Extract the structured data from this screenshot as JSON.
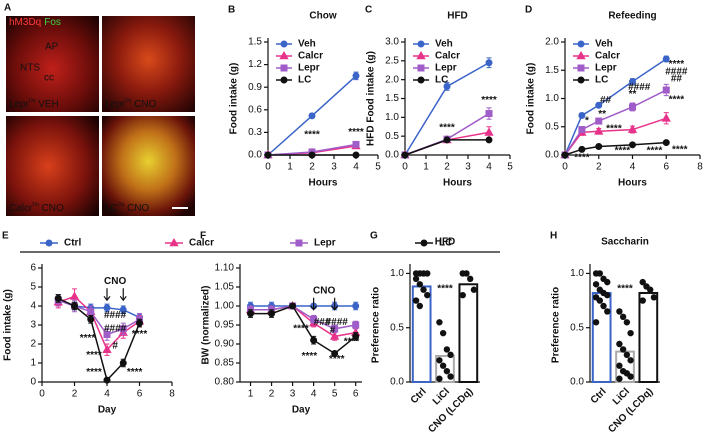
{
  "micrographs": {
    "panel": "A",
    "stain_labels": [
      {
        "text": "hM3Dq",
        "color": "#ff3b3b"
      },
      {
        "text": "Fos",
        "color": "#3fd43f"
      }
    ],
    "regions": [
      "AP",
      "NTS",
      "cc"
    ],
    "captions": [
      {
        "base": "Lepr",
        "sup": "Dq",
        "tail": " VEH"
      },
      {
        "base": "Lepr",
        "sup": "Dq",
        "tail": " CNO"
      },
      {
        "base": "Calcr",
        "sup": "Dq",
        "tail": " CNO"
      },
      {
        "base": "LC",
        "sup": "Dq",
        "tail": " CNO"
      }
    ]
  },
  "chart_data": [
    {
      "panel": "B",
      "type": "line",
      "title": "Chow",
      "ylabel": "Food intake (g)",
      "xlabel": "Hours",
      "legend": "upper left",
      "x": [
        0,
        2,
        4
      ],
      "xlim": [
        0,
        5
      ],
      "xticks": [
        0,
        1,
        2,
        3,
        4,
        5
      ],
      "ylim": [
        0,
        1.5
      ],
      "yticks": [
        {
          "value": 0,
          "label": "0.0"
        },
        0.3,
        0.6,
        0.9,
        1.2,
        1.5
      ],
      "series": [
        {
          "name": "Veh",
          "color": "#3a64c8",
          "marker": "circle",
          "values": [
            0,
            0.52,
            1.05
          ],
          "errors": [
            0,
            0.03,
            0.05
          ]
        },
        {
          "name": "Calcr",
          "color": "#e8338a",
          "marker": "triangle",
          "values": [
            0,
            0.03,
            0.12
          ],
          "errors": [
            0,
            0.01,
            0.02
          ]
        },
        {
          "name": "Lepr",
          "color": "#a05cc8",
          "marker": "square",
          "values": [
            0,
            0.04,
            0.14
          ],
          "errors": [
            0,
            0.01,
            0.02
          ]
        },
        {
          "name": "LC",
          "color": "#111111",
          "marker": "circle",
          "values": [
            0,
            0,
            0
          ],
          "errors": [
            0,
            0,
            0
          ]
        }
      ],
      "annotations": [
        {
          "text": "****",
          "x": 2,
          "y": 0.27
        },
        {
          "text": "****",
          "x": 4,
          "y": 0.3
        }
      ]
    },
    {
      "panel": "C",
      "type": "line",
      "title": "HFD",
      "ylabel": "HFD Food intake (g)",
      "xlabel": "Hours",
      "legend": "upper left",
      "x": [
        0,
        2,
        4
      ],
      "xlim": [
        0,
        5
      ],
      "xticks": [
        0,
        1,
        2,
        3,
        4,
        5
      ],
      "ylim": [
        0,
        3
      ],
      "yticks": [
        {
          "value": 0,
          "label": "0.0"
        },
        0.5,
        {
          "value": 1,
          "label": "1.0"
        },
        1.5,
        {
          "value": 2,
          "label": "2.0"
        },
        2.5,
        {
          "value": 3,
          "label": "3.0"
        }
      ],
      "series": [
        {
          "name": "Veh",
          "color": "#3a64c8",
          "marker": "circle",
          "values": [
            0,
            1.82,
            2.45
          ],
          "errors": [
            0,
            0.1,
            0.13
          ]
        },
        {
          "name": "Calcr",
          "color": "#e8338a",
          "marker": "triangle",
          "values": [
            0,
            0.4,
            0.6
          ],
          "errors": [
            0,
            0.05,
            0.15
          ]
        },
        {
          "name": "Lepr",
          "color": "#a05cc8",
          "marker": "square",
          "values": [
            0,
            0.42,
            1.1
          ],
          "errors": [
            0,
            0.05,
            0.15
          ]
        },
        {
          "name": "LC",
          "color": "#111111",
          "marker": "circle",
          "values": [
            0,
            0.4,
            0.4
          ],
          "errors": [
            0,
            0.03,
            0.03
          ]
        }
      ],
      "annotations": [
        {
          "text": "****",
          "x": 2,
          "y": 0.72
        },
        {
          "text": "****",
          "x": 4,
          "y": 1.45
        }
      ]
    },
    {
      "panel": "D",
      "type": "line",
      "title": "Refeeding",
      "ylabel": "Food intake (g)",
      "xlabel": "Hours",
      "legend": "upper left",
      "x": [
        0,
        1,
        2,
        4,
        6
      ],
      "xlim": [
        0,
        8
      ],
      "xticks": [
        0,
        2,
        4,
        6,
        8
      ],
      "ylim": [
        0,
        2
      ],
      "yticks": [
        {
          "value": 0,
          "label": "0.0"
        },
        0.5,
        {
          "value": 1,
          "label": "1.0"
        },
        1.5,
        {
          "value": 2,
          "label": "2.0"
        }
      ],
      "series": [
        {
          "name": "Veh",
          "color": "#3a64c8",
          "marker": "circle",
          "values": [
            0,
            0.7,
            0.88,
            1.3,
            1.7
          ],
          "errors": [
            0,
            0.04,
            0.04,
            0.05,
            0.05
          ]
        },
        {
          "name": "Calcr",
          "color": "#e8338a",
          "marker": "triangle",
          "values": [
            0,
            0.4,
            0.42,
            0.45,
            0.65
          ],
          "errors": [
            0,
            0.05,
            0.05,
            0.06,
            0.1
          ]
        },
        {
          "name": "Lepr",
          "color": "#a05cc8",
          "marker": "square",
          "values": [
            0,
            0.45,
            0.6,
            0.85,
            1.15
          ],
          "errors": [
            0,
            0.05,
            0.05,
            0.07,
            0.1
          ]
        },
        {
          "name": "LC",
          "color": "#111111",
          "marker": "circle",
          "values": [
            0,
            0.1,
            0.15,
            0.18,
            0.22
          ],
          "errors": [
            0,
            0.02,
            0.02,
            0.02,
            0.02
          ]
        }
      ],
      "annotations": [
        {
          "text": "****",
          "x": 6.6,
          "y": 1.6
        },
        {
          "text": "####",
          "x": 6.6,
          "y": 1.47
        },
        {
          "text": "##",
          "x": 6.6,
          "y": 1.35
        },
        {
          "text": "****",
          "x": 6.6,
          "y": 0.98
        },
        {
          "text": "**",
          "x": 4,
          "y": 1.07
        },
        {
          "text": "####",
          "x": 4.4,
          "y": 1.2
        },
        {
          "text": "##",
          "x": 2.4,
          "y": 0.97
        },
        {
          "text": "*",
          "x": 1.3,
          "y": 0.6
        },
        {
          "text": "**",
          "x": 2.2,
          "y": 0.72
        },
        {
          "text": "****",
          "x": 2.9,
          "y": 0.46
        },
        {
          "text": "****",
          "x": 3.4,
          "y": 0.07
        },
        {
          "text": "****",
          "x": 5.3,
          "y": 0.07
        },
        {
          "text": "****",
          "x": 6.8,
          "y": 0.09
        },
        {
          "text": "****",
          "x": 1,
          "y": -0.05
        }
      ]
    },
    {
      "panel": "E",
      "type": "line",
      "ylabel": "Food intake (g)",
      "xlabel": "Day",
      "legend": "top",
      "x": [
        1,
        2,
        3,
        4,
        5,
        6
      ],
      "xlim": [
        0,
        8
      ],
      "xticks": [
        0,
        2,
        4,
        6,
        8
      ],
      "ylim": [
        0,
        6
      ],
      "yticks": [
        0,
        1,
        2,
        3,
        4,
        5,
        6
      ],
      "series": [
        {
          "name": "Ctrl",
          "color": "#3a64c8",
          "marker": "circle",
          "values": [
            4.3,
            4.0,
            3.9,
            3.9,
            3.8,
            3.4
          ],
          "errors": [
            0.3,
            0.2,
            0.2,
            0.2,
            0.2,
            0.2
          ]
        },
        {
          "name": "Calcr",
          "color": "#e8338a",
          "marker": "triangle",
          "values": [
            4.2,
            4.5,
            3.7,
            1.7,
            2.6,
            3.2
          ],
          "errors": [
            0.3,
            0.4,
            0.3,
            0.3,
            0.3,
            0.3
          ]
        },
        {
          "name": "Lepr",
          "color": "#a05cc8",
          "marker": "square",
          "values": [
            4.3,
            4.0,
            3.7,
            2.5,
            2.8,
            3.3
          ],
          "errors": [
            0.3,
            0.3,
            0.3,
            0.3,
            0.3,
            0.3
          ]
        },
        {
          "name": "LC",
          "color": "#111111",
          "marker": "circle",
          "values": [
            4.4,
            4.0,
            3.3,
            0.1,
            1.0,
            3.1
          ],
          "errors": [
            0.2,
            0.2,
            0.2,
            0.1,
            0.2,
            0.2
          ]
        }
      ],
      "cno": {
        "text": "CNO",
        "x": 4.5,
        "y": 5.3,
        "arrow_x": [
          4,
          5
        ]
      },
      "annotations": [
        {
          "text": "****",
          "x": 2.8,
          "y": 2.3
        },
        {
          "text": "****",
          "x": 3.2,
          "y": 1.4
        },
        {
          "text": "****",
          "x": 3.2,
          "y": 0.5
        },
        {
          "text": "####",
          "x": 4.5,
          "y": 3.5
        },
        {
          "text": "####",
          "x": 4.5,
          "y": 2.8
        },
        {
          "text": "#",
          "x": 4.5,
          "y": 1.9
        },
        {
          "text": "****",
          "x": 6,
          "y": 2.5
        },
        {
          "text": "****",
          "x": 5.7,
          "y": 0.5
        }
      ]
    },
    {
      "panel": "F",
      "type": "line",
      "ylabel": "BW (normalized)",
      "xlabel": "Day",
      "x": [
        1,
        2,
        3,
        4,
        5,
        6
      ],
      "xlim": [
        0.5,
        6.3
      ],
      "xticks": [
        1,
        2,
        3,
        4,
        5,
        6
      ],
      "ylim": [
        0.8,
        1.1
      ],
      "yticks": [
        {
          "value": 0.8,
          "label": "0.80"
        },
        {
          "value": 0.85,
          "label": "0.85"
        },
        {
          "value": 0.9,
          "label": "0.90"
        },
        {
          "value": 0.95,
          "label": "0.95"
        },
        {
          "value": 1,
          "label": "1.00"
        },
        {
          "value": 1.05,
          "label": "1.05"
        },
        {
          "value": 1.1,
          "label": "1.10"
        }
      ],
      "series": [
        {
          "color": "#3a64c8",
          "marker": "circle",
          "values": [
            1.0,
            1.0,
            1.0,
            1.0,
            1.0,
            1.0
          ],
          "errors": [
            0.01,
            0.01,
            0.005,
            0.005,
            0.01,
            0.01
          ]
        },
        {
          "color": "#e8338a",
          "marker": "triangle",
          "values": [
            0.99,
            0.99,
            1.0,
            0.955,
            0.92,
            0.93
          ],
          "errors": [
            0.01,
            0.01,
            0.005,
            0.01,
            0.01,
            0.01
          ]
        },
        {
          "color": "#a05cc8",
          "marker": "square",
          "values": [
            0.99,
            0.99,
            1.0,
            0.965,
            0.94,
            0.95
          ],
          "errors": [
            0.01,
            0.01,
            0.005,
            0.01,
            0.01,
            0.01
          ]
        },
        {
          "color": "#111111",
          "marker": "circle",
          "values": [
            0.98,
            0.98,
            1.0,
            0.91,
            0.875,
            0.92
          ],
          "errors": [
            0.01,
            0.01,
            0.005,
            0.01,
            0.005,
            0.01
          ]
        }
      ],
      "cno": {
        "text": "CNO",
        "x": 4.5,
        "y": 1.04,
        "arrow_x": [
          4,
          5
        ]
      },
      "annotations": [
        {
          "text": "****",
          "x": 3.4,
          "y": 0.94
        },
        {
          "text": "###",
          "x": 4.4,
          "y": 0.957
        },
        {
          "text": "####",
          "x": 5.1,
          "y": 0.957
        },
        {
          "text": "#",
          "x": 4.9,
          "y": 0.936
        },
        {
          "text": "****",
          "x": 3.8,
          "y": 0.868
        },
        {
          "text": "****",
          "x": 5.1,
          "y": 0.86
        },
        {
          "text": "****",
          "x": 5.8,
          "y": 0.905
        }
      ]
    },
    {
      "panel": "G",
      "type": "bar_dot",
      "title": "HFD",
      "ylabel": "Preference ratio",
      "categories": [
        "Ctrl",
        "LiCl",
        "CNO (LCDq)"
      ],
      "values": [
        0.88,
        0.24,
        0.9
      ],
      "colors": [
        "#3a64c8",
        "#aaaaaa",
        "#111111"
      ],
      "ylim": [
        0,
        1.05
      ],
      "yticks": [
        {
          "value": 0,
          "label": "0.0"
        },
        0.5,
        {
          "value": 1,
          "label": "1.0"
        }
      ],
      "points": [
        [
          1.0,
          1.0,
          1.0,
          1.0,
          0.95,
          0.9,
          0.85,
          0.8,
          0.75,
          0.7
        ],
        [
          0.55,
          0.45,
          0.3,
          0.25,
          0.2,
          0.15,
          0.1,
          0.05,
          0.03
        ],
        [
          1.0,
          1.0,
          0.95,
          0.85,
          0.8
        ]
      ],
      "annotations": [
        {
          "text": "****",
          "category": 1,
          "y": 0.86
        }
      ]
    },
    {
      "panel": "H",
      "type": "bar_dot",
      "title": "Saccharin",
      "ylabel": "Preference ratio",
      "categories": [
        "Ctrl",
        "LiCl",
        "CNO (LCDq)"
      ],
      "values": [
        0.82,
        0.28,
        0.82
      ],
      "colors": [
        "#3a64c8",
        "#aaaaaa",
        "#111111"
      ],
      "ylim": [
        0,
        1.05
      ],
      "yticks": [
        {
          "value": 0,
          "label": "0.0"
        },
        0.5,
        {
          "value": 1,
          "label": "1.0"
        }
      ],
      "points": [
        [
          1.0,
          1.0,
          0.95,
          0.92,
          0.9,
          0.85,
          0.82,
          0.8,
          0.78,
          0.75,
          0.7,
          0.65,
          0.55
        ],
        [
          0.65,
          0.6,
          0.55,
          0.45,
          0.35,
          0.3,
          0.25,
          0.2,
          0.15,
          0.1,
          0.08,
          0.05,
          0.03
        ],
        [
          0.92,
          0.88,
          0.85,
          0.78,
          0.75
        ]
      ],
      "annotations": [
        {
          "text": "****",
          "category": 1,
          "y": 0.86
        }
      ]
    }
  ]
}
